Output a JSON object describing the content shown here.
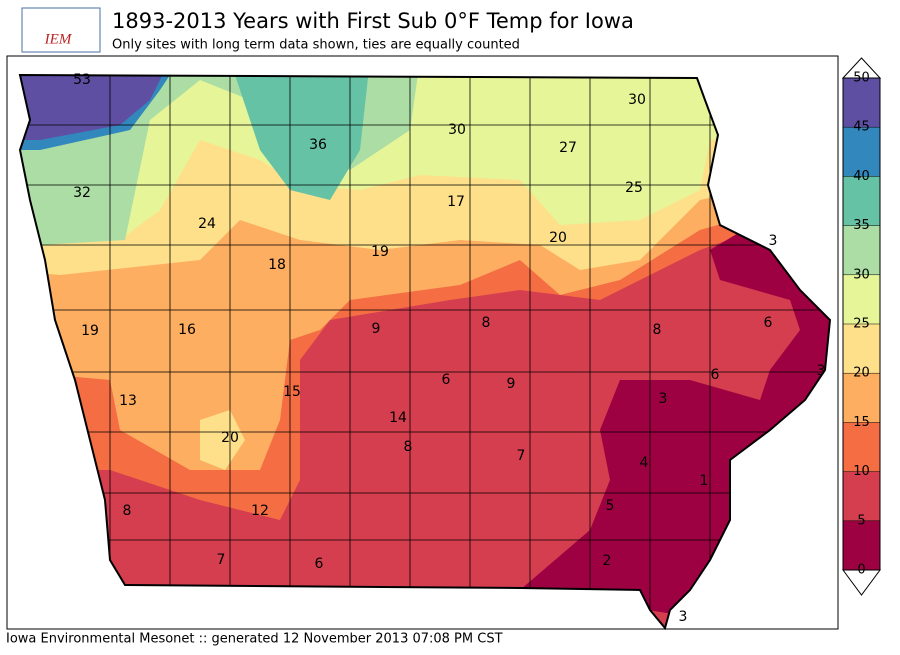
{
  "header": {
    "logo": "IEM",
    "title": "1893-2013 Years with First Sub 0°F Temp for Iowa",
    "subtitle": "Only sites with long term data shown, ties are equally counted"
  },
  "map": {
    "station_values": [
      53,
      30,
      36,
      30,
      27,
      32,
      17,
      25,
      24,
      20,
      3,
      18,
      19,
      19,
      16,
      9,
      8,
      8,
      6,
      6,
      3,
      13,
      15,
      6,
      9,
      3,
      14,
      20,
      8,
      7,
      4,
      1,
      8,
      12,
      5,
      7,
      6,
      2,
      3
    ]
  },
  "colorbar": {
    "ticks": [
      0,
      5,
      10,
      15,
      20,
      25,
      30,
      35,
      40,
      45,
      50
    ],
    "colors": [
      "#9e0142",
      "#d53e4f",
      "#f46d43",
      "#fdae61",
      "#fee08b",
      "#e6f598",
      "#abdda4",
      "#66c2a5",
      "#3288bd",
      "#5e4fa2"
    ]
  },
  "footer": "Iowa Environmental Mesonet :: generated 12 November 2013 07:08 PM CST"
}
